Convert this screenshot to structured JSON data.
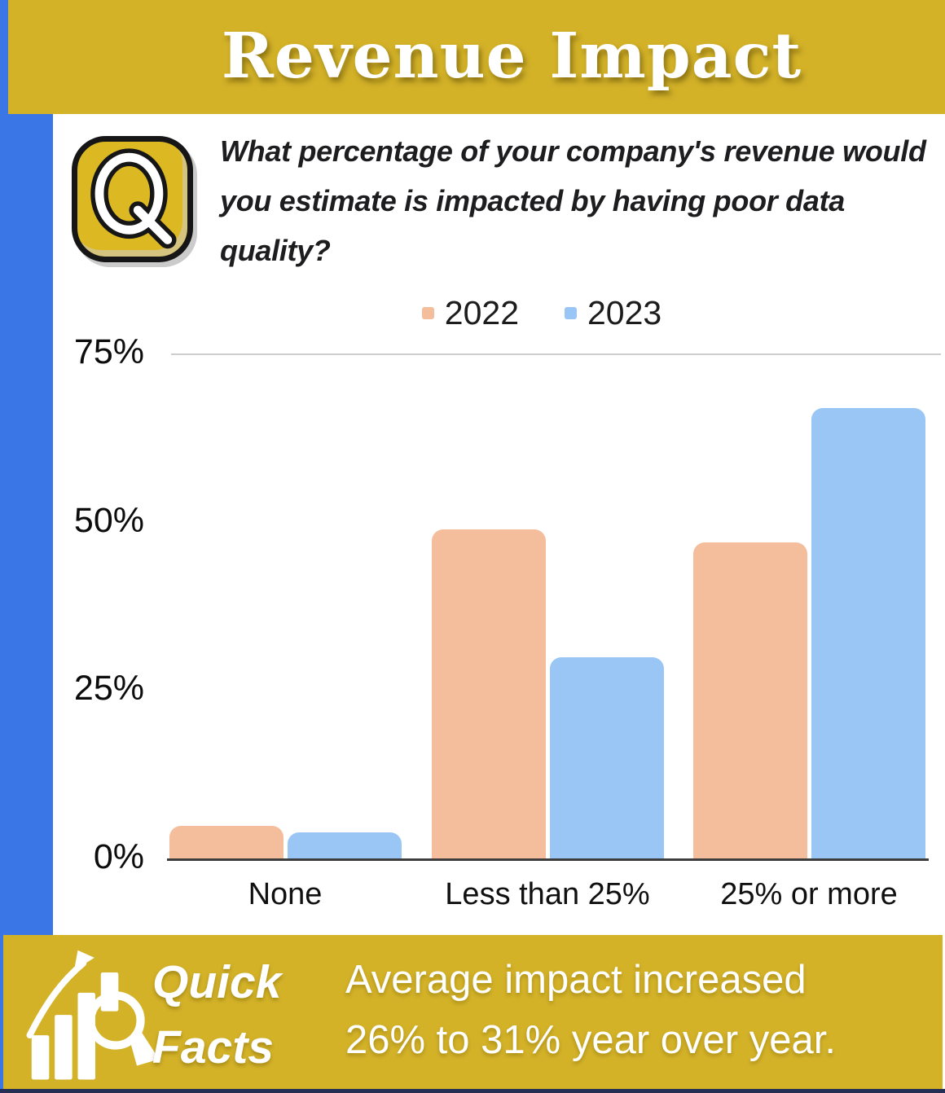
{
  "header": {
    "title": "Revenue Impact"
  },
  "question": {
    "icon": "q-icon",
    "text": "What percentage of your company's revenue would you estimate is impacted by having poor data quality?"
  },
  "chart_data": {
    "type": "bar",
    "title": "",
    "categories": [
      "None",
      "Less than 25%",
      "25% or more"
    ],
    "series": [
      {
        "name": "2022",
        "color": "#f4be9c",
        "values": [
          5,
          49,
          47
        ]
      },
      {
        "name": "2023",
        "color": "#9ac6f5",
        "values": [
          4,
          30,
          67
        ]
      }
    ],
    "xlabel": "",
    "ylabel": "",
    "ylim": [
      0,
      75
    ],
    "yticks": [
      {
        "value": 0,
        "label": "0%"
      },
      {
        "value": 25,
        "label": "25%"
      },
      {
        "value": 50,
        "label": "50%"
      },
      {
        "value": 75,
        "label": "75%"
      }
    ],
    "gridlines": [
      75
    ],
    "legend_position": "top"
  },
  "footer": {
    "icon": "chart-magnifier-icon",
    "badge_line1": "Quick",
    "badge_line2": "Facts",
    "fact_line1": "Average impact increased",
    "fact_line2": "26% to 31% year over year."
  },
  "colors": {
    "banner_yellow": "#d3b228",
    "icon_yellow": "#dcb822",
    "stripe_blue": "#3b76e6",
    "edge_navy": "#252f56",
    "bar_2022": "#f4be9c",
    "bar_2023": "#9ac6f5"
  }
}
